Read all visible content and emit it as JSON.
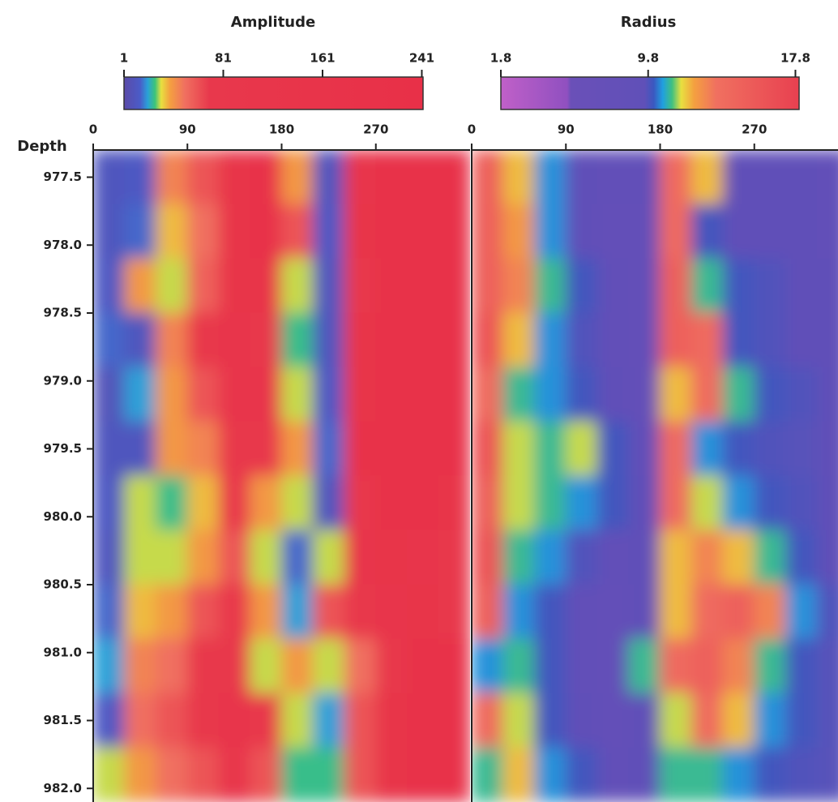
{
  "chart_data": [
    {
      "type": "heatmap",
      "title": "Amplitude",
      "ylabel": "Depth",
      "xlim": [
        0,
        360
      ],
      "xticks": [
        0,
        90,
        180,
        270
      ],
      "ylim": [
        977.3,
        982.1
      ],
      "y_inverted": true,
      "yticks": [
        977.5,
        {
          "value": 978,
          "label": "978.0"
        },
        978.5,
        {
          "value": 979,
          "label": "979.0"
        },
        979.5,
        {
          "value": 980,
          "label": "980.0"
        },
        980.5,
        {
          "value": 981,
          "label": "981.0"
        },
        981.5,
        {
          "value": 982,
          "label": "982.0"
        }
      ],
      "colorbar": {
        "lim": [
          1,
          242
        ],
        "ticks": [
          1,
          81,
          161,
          241
        ],
        "stops": [
          [
            1,
            "#5b4aa8"
          ],
          [
            14,
            "#4a5cc8"
          ],
          [
            20,
            "#2aa0d8"
          ],
          [
            26,
            "#3cc47a"
          ],
          [
            31,
            "#e8e040"
          ],
          [
            38,
            "#f4a040"
          ],
          [
            50,
            "#f07060"
          ],
          [
            70,
            "#e8384c"
          ],
          [
            242,
            "#e83048"
          ]
        ]
      },
      "values": [
        [
          10,
          12,
          45,
          60,
          150,
          180,
          40,
          10,
          120,
          200,
          220,
          200
        ],
        [
          10,
          15,
          35,
          50,
          160,
          170,
          60,
          12,
          160,
          210,
          220,
          180
        ],
        [
          12,
          40,
          30,
          55,
          140,
          150,
          30,
          10,
          90,
          200,
          220,
          200
        ],
        [
          15,
          10,
          45,
          70,
          120,
          100,
          25,
          10,
          150,
          200,
          210,
          190
        ],
        [
          8,
          20,
          40,
          60,
          110,
          130,
          30,
          12,
          160,
          180,
          200,
          190
        ],
        [
          10,
          10,
          40,
          45,
          100,
          80,
          40,
          15,
          170,
          200,
          190,
          180
        ],
        [
          12,
          30,
          25,
          35,
          90,
          40,
          30,
          10,
          90,
          200,
          180,
          150
        ],
        [
          10,
          30,
          30,
          40,
          60,
          30,
          15,
          30,
          120,
          160,
          120,
          70
        ],
        [
          15,
          35,
          40,
          60,
          100,
          40,
          20,
          60,
          80,
          120,
          150,
          90
        ],
        [
          20,
          45,
          50,
          80,
          70,
          30,
          40,
          30,
          50,
          100,
          200,
          180
        ],
        [
          12,
          50,
          60,
          70,
          120,
          80,
          30,
          20,
          60,
          140,
          200,
          200
        ],
        [
          30,
          40,
          50,
          60,
          130,
          60,
          25,
          25,
          60,
          150,
          210,
          220
        ]
      ]
    },
    {
      "type": "heatmap",
      "title": "Radius",
      "xlim": [
        0,
        360
      ],
      "xticks": [
        0,
        90,
        180,
        270
      ],
      "ylim": [
        977.3,
        982.1
      ],
      "y_inverted": true,
      "colorbar": {
        "lim": [
          1.8,
          18
        ],
        "ticks": [
          1.8,
          9.8,
          17.8
        ],
        "stops": [
          [
            1.8,
            "#c060c8"
          ],
          [
            5.4,
            "#9050c0"
          ],
          [
            5.6,
            "#6a50b8"
          ],
          [
            9.6,
            "#6050b8"
          ],
          [
            10.1,
            "#3a58c0"
          ],
          [
            10.6,
            "#20a0e0"
          ],
          [
            11.1,
            "#40c080"
          ],
          [
            11.6,
            "#e8e040"
          ],
          [
            12.3,
            "#f4a040"
          ],
          [
            13.5,
            "#f07060"
          ],
          [
            18,
            "#e84050"
          ]
        ]
      },
      "values": [
        [
          15,
          12,
          10.5,
          9.5,
          9,
          9,
          14,
          12,
          9.5,
          9.6,
          9.5,
          9
        ],
        [
          15,
          12.5,
          10.5,
          9.5,
          8.5,
          8.5,
          14,
          10,
          9.5,
          9.6,
          9.5,
          9
        ],
        [
          15,
          13,
          11,
          10,
          9,
          8,
          15,
          11,
          10,
          9.8,
          9.6,
          9.5
        ],
        [
          16,
          12,
          10.5,
          9.8,
          9,
          8.5,
          15,
          14,
          10,
          9.8,
          9.6,
          9.5
        ],
        [
          14,
          11,
          10.5,
          10,
          9.2,
          8.5,
          12,
          14,
          11,
          10,
          9.8,
          9.6
        ],
        [
          16,
          11.5,
          11,
          11.5,
          10,
          9,
          14,
          10.5,
          10,
          9.8,
          9.7,
          9.6
        ],
        [
          15,
          11.5,
          11,
          10.5,
          10,
          9.5,
          14,
          11.5,
          10.5,
          10,
          9.8,
          9.6
        ],
        [
          16,
          11,
          10.5,
          9.8,
          9,
          9.2,
          12,
          13,
          12,
          11,
          10,
          9.6
        ],
        [
          15,
          10.5,
          10,
          9,
          8.5,
          9.5,
          12,
          14,
          15,
          13,
          10.5,
          9.8
        ],
        [
          10.5,
          11,
          10,
          9,
          8.5,
          11,
          14,
          15,
          13,
          11,
          10,
          9.7
        ],
        [
          14,
          11.5,
          10,
          9.5,
          8.5,
          9.5,
          11.5,
          14,
          12,
          10.5,
          10,
          9.7
        ],
        [
          11,
          12,
          10.5,
          10,
          9,
          9.5,
          11,
          11,
          10.5,
          10,
          9.8,
          9.7
        ]
      ]
    }
  ]
}
